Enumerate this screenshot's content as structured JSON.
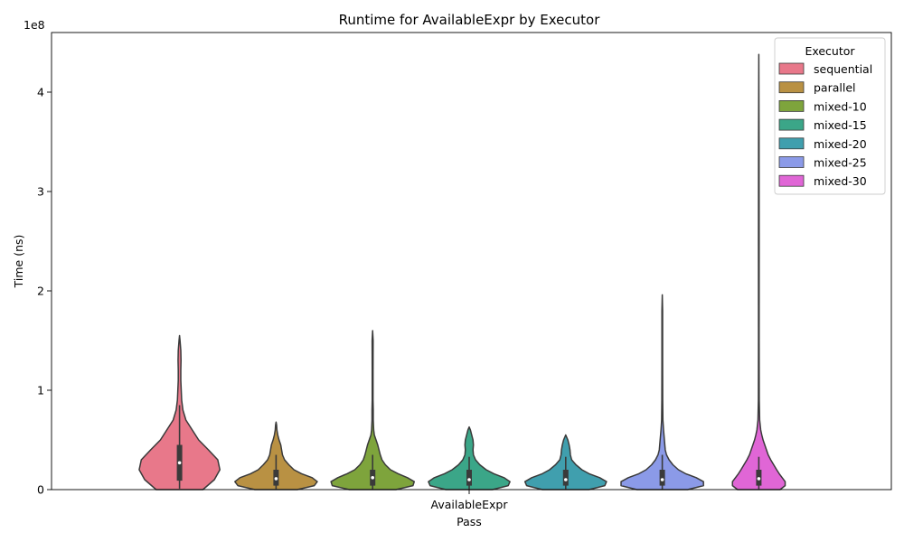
{
  "chart_data": {
    "type": "violin",
    "title": "Runtime for AvailableExpr by Executor",
    "xlabel": "Pass",
    "ylabel": "Time (ns)",
    "y_scale_label": "1e8",
    "categories": [
      "AvailableExpr"
    ],
    "ylim": [
      0,
      460000000
    ],
    "yticks": [
      {
        "value": 0,
        "label": "0"
      },
      {
        "value": 100000000,
        "label": "1"
      },
      {
        "value": 200000000,
        "label": "2"
      },
      {
        "value": 300000000,
        "label": "3"
      },
      {
        "value": 400000000,
        "label": "4"
      }
    ],
    "legend": {
      "title": "Executor",
      "position": "top-right"
    },
    "series": [
      {
        "name": "sequential",
        "color": "#e8788a",
        "min": 0,
        "max": 155000000,
        "q1": 9000000,
        "median": 27000000,
        "q3": 45000000,
        "whisker_low": 1000000,
        "whisker_high": 85000000,
        "density": [
          [
            0,
            0.55
          ],
          [
            10000000,
            0.82
          ],
          [
            20000000,
            0.95
          ],
          [
            30000000,
            0.9
          ],
          [
            40000000,
            0.68
          ],
          [
            50000000,
            0.45
          ],
          [
            60000000,
            0.3
          ],
          [
            70000000,
            0.15
          ],
          [
            80000000,
            0.08
          ],
          [
            90000000,
            0.05
          ],
          [
            100000000,
            0.04
          ],
          [
            110000000,
            0.03
          ],
          [
            120000000,
            0.03
          ],
          [
            130000000,
            0.035
          ],
          [
            140000000,
            0.03
          ],
          [
            150000000,
            0.012
          ],
          [
            155000000,
            0
          ]
        ]
      },
      {
        "name": "parallel",
        "color": "#b99143",
        "min": 0,
        "max": 68000000,
        "q1": 4000000,
        "median": 11000000,
        "q3": 20000000,
        "whisker_low": 0,
        "whisker_high": 35000000,
        "density": [
          [
            0,
            0.5
          ],
          [
            4000000,
            0.9
          ],
          [
            8000000,
            0.97
          ],
          [
            12000000,
            0.85
          ],
          [
            16000000,
            0.6
          ],
          [
            20000000,
            0.42
          ],
          [
            25000000,
            0.3
          ],
          [
            30000000,
            0.2
          ],
          [
            35000000,
            0.15
          ],
          [
            40000000,
            0.13
          ],
          [
            45000000,
            0.11
          ],
          [
            50000000,
            0.07
          ],
          [
            55000000,
            0.04
          ],
          [
            60000000,
            0.02
          ],
          [
            65000000,
            0.012
          ],
          [
            68000000,
            0
          ]
        ]
      },
      {
        "name": "mixed-10",
        "color": "#7ea43c",
        "min": 0,
        "max": 160000000,
        "q1": 4000000,
        "median": 12000000,
        "q3": 20000000,
        "whisker_low": 0,
        "whisker_high": 35000000,
        "density": [
          [
            0,
            0.55
          ],
          [
            4000000,
            0.95
          ],
          [
            8000000,
            0.98
          ],
          [
            12000000,
            0.82
          ],
          [
            16000000,
            0.6
          ],
          [
            20000000,
            0.42
          ],
          [
            25000000,
            0.3
          ],
          [
            30000000,
            0.22
          ],
          [
            35000000,
            0.18
          ],
          [
            40000000,
            0.15
          ],
          [
            45000000,
            0.12
          ],
          [
            50000000,
            0.08
          ],
          [
            55000000,
            0.04
          ],
          [
            60000000,
            0.025
          ],
          [
            70000000,
            0.015
          ],
          [
            80000000,
            0.015
          ],
          [
            90000000,
            0.01
          ],
          [
            120000000,
            0.01
          ],
          [
            150000000,
            0.012
          ],
          [
            160000000,
            0
          ]
        ]
      },
      {
        "name": "mixed-15",
        "color": "#3ba688",
        "min": 0,
        "max": 63000000,
        "q1": 4000000,
        "median": 10000000,
        "q3": 20000000,
        "whisker_low": 0,
        "whisker_high": 33000000,
        "density": [
          [
            0,
            0.55
          ],
          [
            4000000,
            0.92
          ],
          [
            8000000,
            0.96
          ],
          [
            12000000,
            0.82
          ],
          [
            16000000,
            0.58
          ],
          [
            20000000,
            0.4
          ],
          [
            25000000,
            0.25
          ],
          [
            30000000,
            0.15
          ],
          [
            35000000,
            0.1
          ],
          [
            40000000,
            0.09
          ],
          [
            45000000,
            0.1
          ],
          [
            50000000,
            0.09
          ],
          [
            55000000,
            0.06
          ],
          [
            60000000,
            0.03
          ],
          [
            63000000,
            0
          ]
        ]
      },
      {
        "name": "mixed-20",
        "color": "#409fae",
        "min": 0,
        "max": 55000000,
        "q1": 4000000,
        "median": 10000000,
        "q3": 20000000,
        "whisker_low": 0,
        "whisker_high": 33000000,
        "density": [
          [
            0,
            0.55
          ],
          [
            4000000,
            0.92
          ],
          [
            8000000,
            0.96
          ],
          [
            12000000,
            0.8
          ],
          [
            16000000,
            0.55
          ],
          [
            20000000,
            0.38
          ],
          [
            25000000,
            0.24
          ],
          [
            30000000,
            0.14
          ],
          [
            35000000,
            0.11
          ],
          [
            40000000,
            0.1
          ],
          [
            45000000,
            0.08
          ],
          [
            50000000,
            0.05
          ],
          [
            55000000,
            0
          ]
        ]
      },
      {
        "name": "mixed-25",
        "color": "#8b9ae8",
        "min": 0,
        "max": 196000000,
        "q1": 4000000,
        "median": 10000000,
        "q3": 20000000,
        "whisker_low": 0,
        "whisker_high": 35000000,
        "density": [
          [
            0,
            0.6
          ],
          [
            4000000,
            0.97
          ],
          [
            8000000,
            0.97
          ],
          [
            12000000,
            0.8
          ],
          [
            16000000,
            0.55
          ],
          [
            20000000,
            0.38
          ],
          [
            25000000,
            0.25
          ],
          [
            30000000,
            0.16
          ],
          [
            35000000,
            0.1
          ],
          [
            40000000,
            0.07
          ],
          [
            50000000,
            0.05
          ],
          [
            60000000,
            0.03
          ],
          [
            70000000,
            0.015
          ],
          [
            90000000,
            0.01
          ],
          [
            130000000,
            0.008
          ],
          [
            180000000,
            0.008
          ],
          [
            196000000,
            0
          ]
        ]
      },
      {
        "name": "mixed-30",
        "color": "#e066d6",
        "min": 0,
        "max": 438000000,
        "q1": 4000000,
        "median": 11000000,
        "q3": 20000000,
        "whisker_low": 0,
        "whisker_high": 33000000,
        "density": [
          [
            0,
            0.5
          ],
          [
            4000000,
            0.62
          ],
          [
            8000000,
            0.62
          ],
          [
            12000000,
            0.55
          ],
          [
            16000000,
            0.48
          ],
          [
            20000000,
            0.42
          ],
          [
            25000000,
            0.35
          ],
          [
            30000000,
            0.28
          ],
          [
            35000000,
            0.22
          ],
          [
            40000000,
            0.18
          ],
          [
            45000000,
            0.14
          ],
          [
            50000000,
            0.1
          ],
          [
            55000000,
            0.07
          ],
          [
            60000000,
            0.045
          ],
          [
            70000000,
            0.02
          ],
          [
            90000000,
            0.01
          ],
          [
            150000000,
            0.007
          ],
          [
            250000000,
            0.008
          ],
          [
            350000000,
            0.006
          ],
          [
            438000000,
            0
          ]
        ]
      }
    ]
  }
}
